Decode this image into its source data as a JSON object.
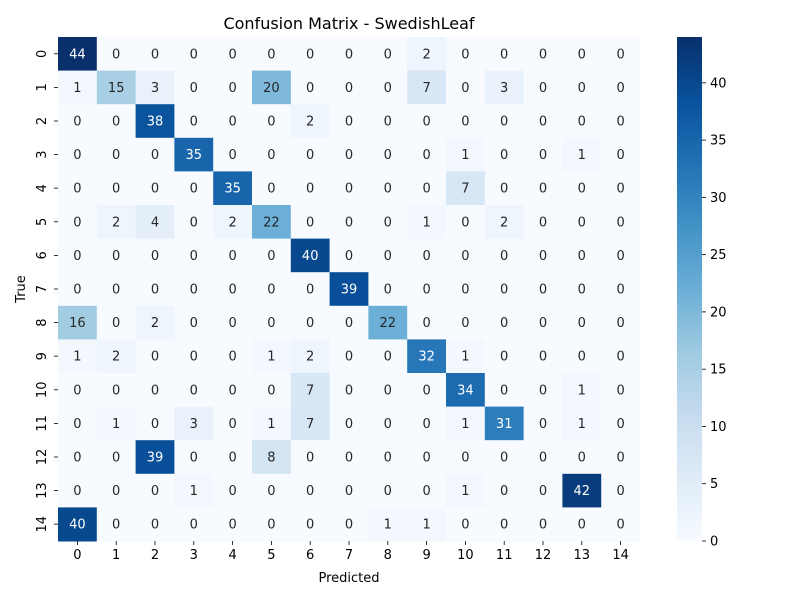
{
  "chart_data": {
    "type": "heatmap",
    "title": "Confusion Matrix - SwedishLeaf",
    "xlabel": "Predicted",
    "ylabel": "True",
    "x_categories": [
      "0",
      "1",
      "2",
      "3",
      "4",
      "5",
      "6",
      "7",
      "8",
      "9",
      "10",
      "11",
      "12",
      "13",
      "14"
    ],
    "y_categories": [
      "0",
      "1",
      "2",
      "3",
      "4",
      "5",
      "6",
      "7",
      "8",
      "9",
      "10",
      "11",
      "12",
      "13",
      "14"
    ],
    "values": [
      [
        44,
        0,
        0,
        0,
        0,
        0,
        0,
        0,
        0,
        2,
        0,
        0,
        0,
        0,
        0
      ],
      [
        1,
        15,
        3,
        0,
        0,
        20,
        0,
        0,
        0,
        7,
        0,
        3,
        0,
        0,
        0
      ],
      [
        0,
        0,
        38,
        0,
        0,
        0,
        2,
        0,
        0,
        0,
        0,
        0,
        0,
        0,
        0
      ],
      [
        0,
        0,
        0,
        35,
        0,
        0,
        0,
        0,
        0,
        0,
        1,
        0,
        0,
        1,
        0
      ],
      [
        0,
        0,
        0,
        0,
        35,
        0,
        0,
        0,
        0,
        0,
        7,
        0,
        0,
        0,
        0
      ],
      [
        0,
        2,
        4,
        0,
        2,
        22,
        0,
        0,
        0,
        1,
        0,
        2,
        0,
        0,
        0
      ],
      [
        0,
        0,
        0,
        0,
        0,
        0,
        40,
        0,
        0,
        0,
        0,
        0,
        0,
        0,
        0
      ],
      [
        0,
        0,
        0,
        0,
        0,
        0,
        0,
        39,
        0,
        0,
        0,
        0,
        0,
        0,
        0
      ],
      [
        16,
        0,
        2,
        0,
        0,
        0,
        0,
        0,
        22,
        0,
        0,
        0,
        0,
        0,
        0
      ],
      [
        1,
        2,
        0,
        0,
        0,
        1,
        2,
        0,
        0,
        32,
        1,
        0,
        0,
        0,
        0
      ],
      [
        0,
        0,
        0,
        0,
        0,
        0,
        7,
        0,
        0,
        0,
        34,
        0,
        0,
        1,
        0
      ],
      [
        0,
        1,
        0,
        3,
        0,
        1,
        7,
        0,
        0,
        0,
        1,
        31,
        0,
        1,
        0
      ],
      [
        0,
        0,
        39,
        0,
        0,
        8,
        0,
        0,
        0,
        0,
        0,
        0,
        0,
        0,
        0
      ],
      [
        0,
        0,
        0,
        1,
        0,
        0,
        0,
        0,
        0,
        0,
        1,
        0,
        0,
        42,
        0
      ],
      [
        40,
        0,
        0,
        0,
        0,
        0,
        0,
        0,
        1,
        1,
        0,
        0,
        0,
        0,
        0
      ]
    ],
    "colorbar": {
      "colormap": "Blues",
      "min": 0,
      "max": 44,
      "ticks": [
        0,
        5,
        10,
        15,
        20,
        25,
        30,
        35,
        40
      ]
    },
    "grid": false,
    "legend": "colorbar-right"
  }
}
